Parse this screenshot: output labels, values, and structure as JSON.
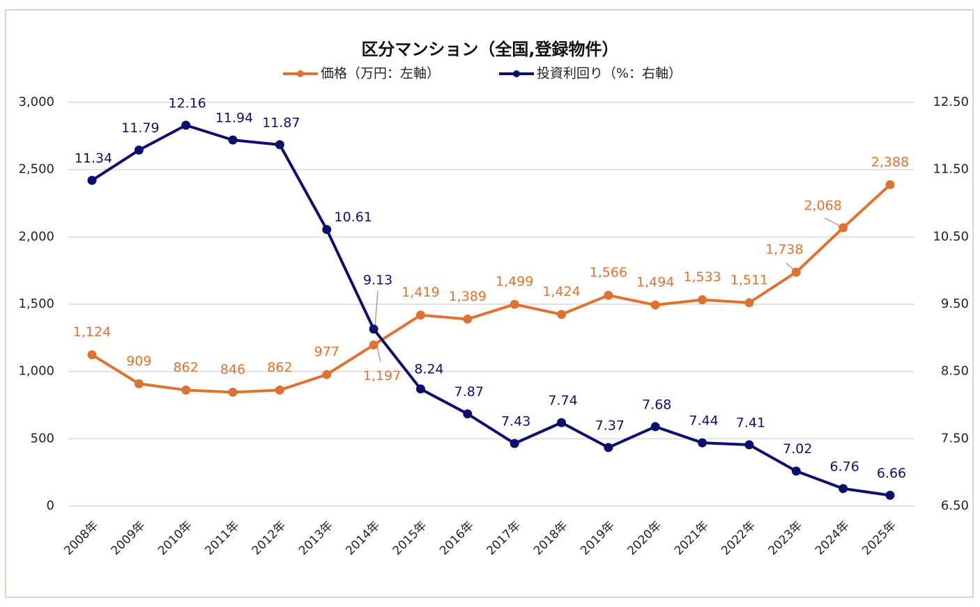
{
  "chart_data": {
    "type": "line",
    "title": "区分マンション（全国,登録物件）",
    "categories": [
      "2008年",
      "2009年",
      "2010年",
      "2011年",
      "2012年",
      "2013年",
      "2014年",
      "2015年",
      "2016年",
      "2017年",
      "2018年",
      "2019年",
      "2020年",
      "2021年",
      "2022年",
      "2023年",
      "2024年",
      "2025年"
    ],
    "series": [
      {
        "name": "価格（万円：左軸）",
        "axis": "left",
        "color": "#E07230",
        "values": [
          1124,
          909,
          862,
          846,
          862,
          977,
          1197,
          1419,
          1389,
          1499,
          1424,
          1566,
          1494,
          1533,
          1511,
          1738,
          2068,
          2388
        ],
        "labels": [
          "1,124",
          "909",
          "862",
          "846",
          "862",
          "977",
          "1,197",
          "1,419",
          "1,389",
          "1,499",
          "1,424",
          "1,566",
          "1,494",
          "1,533",
          "1,511",
          "1,738",
          "2,068",
          "2,388"
        ]
      },
      {
        "name": "投資利回り（%：右軸）",
        "axis": "right",
        "color": "#0D0F6E",
        "values": [
          11.34,
          11.79,
          12.16,
          11.94,
          11.87,
          10.61,
          9.13,
          8.24,
          7.87,
          7.43,
          7.74,
          7.37,
          7.68,
          7.44,
          7.41,
          7.02,
          6.76,
          6.66
        ],
        "labels": [
          "11.34",
          "11.79",
          "12.16",
          "11.94",
          "11.87",
          "10.61",
          "9.13",
          "8.24",
          "7.87",
          "7.43",
          "7.74",
          "7.37",
          "7.68",
          "7.44",
          "7.41",
          "7.02",
          "6.76",
          "6.66"
        ]
      }
    ],
    "left_axis": {
      "ylim": [
        0,
        3000
      ],
      "ticks": [
        "0",
        "500",
        "1,000",
        "1,500",
        "2,000",
        "2,500",
        "3,000"
      ]
    },
    "right_axis": {
      "ylim": [
        6.5,
        12.5
      ],
      "ticks": [
        "6.50",
        "7.50",
        "8.50",
        "9.50",
        "10.50",
        "11.50",
        "12.50"
      ]
    },
    "grid": true,
    "legend_placement": "top"
  }
}
